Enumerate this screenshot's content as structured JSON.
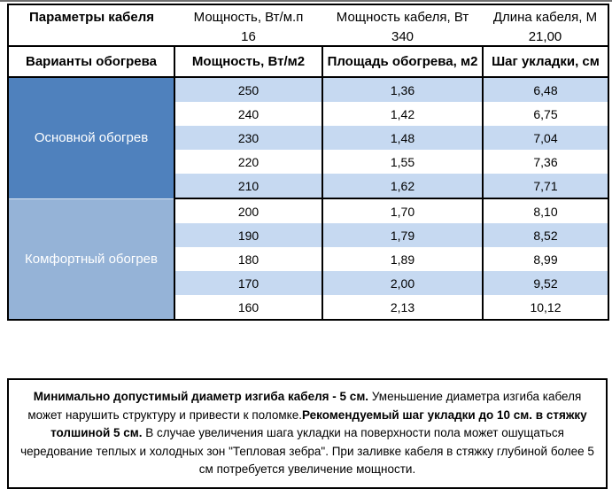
{
  "colors": {
    "main_section_blue": "#4f81bd",
    "comfort_section_blue": "#95b3d7",
    "band_blue": "#c6d9f1",
    "border_black": "#000000",
    "section_text_white": "#ffffff"
  },
  "table": {
    "params_header": {
      "title": "Параметры кабеля",
      "columns": [
        {
          "label": "Мощность, Вт/м.п",
          "value": "16"
        },
        {
          "label": "Мощность кабеля, Вт",
          "value": "340"
        },
        {
          "label": "Длина кабеля, М",
          "value": "21,00"
        }
      ]
    },
    "variants_header": {
      "title": "Варианты обогрева",
      "columns": [
        "Мощность, Вт/м2",
        "Площадь обогрева, м2",
        "Шаг укладки, см"
      ]
    },
    "sections": [
      {
        "name": "Основной обогрев",
        "rows": [
          [
            "250",
            "1,36",
            "6,48"
          ],
          [
            "240",
            "1,42",
            "6,75"
          ],
          [
            "230",
            "1,48",
            "7,04"
          ],
          [
            "220",
            "1,55",
            "7,36"
          ],
          [
            "210",
            "1,62",
            "7,71"
          ]
        ]
      },
      {
        "name": "Комфортный обогрев",
        "rows": [
          [
            "200",
            "1,70",
            "8,10"
          ],
          [
            "190",
            "1,79",
            "8,52"
          ],
          [
            "180",
            "1,89",
            "8,99"
          ],
          [
            "170",
            "2,00",
            "9,52"
          ],
          [
            "160",
            "2,13",
            "10,12"
          ]
        ]
      }
    ]
  },
  "note": {
    "segments": [
      {
        "text": "Минимально допустимый диаметр изгиба кабеля - 5 см.",
        "bold": true
      },
      {
        "text": " Уменьшение диаметра изгиба кабеля может нарушить структуру и привести к поломке.",
        "bold": false
      },
      {
        "text": "Рекомендуемый шаг укладки до 10 см. в стяжку толшиной 5 см.",
        "bold": true
      },
      {
        "text": " В случае увеличения шага укладки на поверхности пола может ошущаться чередование теплых и холодных зон \"Тепловая зебра\". При заливке кабеля в стяжку глубиной более 5 см потребуется увеличение мощности.",
        "bold": false
      }
    ]
  }
}
